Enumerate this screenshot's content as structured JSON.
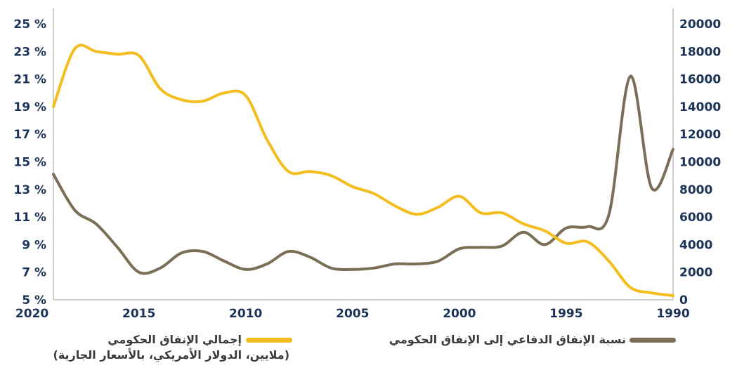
{
  "chart_data": {
    "type": "line",
    "x_ticks": [
      "2020",
      "2015",
      "2010",
      "2005",
      "2000",
      "1995",
      "1990"
    ],
    "x_reversed": true,
    "xlim": [
      2019,
      1990
    ],
    "left_axis": {
      "ticks": [
        "25 %",
        "23 %",
        "21 %",
        "19 %",
        "17 %",
        "15 %",
        "13 %",
        "11 %",
        "9 %",
        "7 %",
        "5 %"
      ],
      "ylim": [
        5,
        25
      ],
      "unit": "%"
    },
    "right_axis": {
      "ticks": [
        "20000",
        "18000",
        "16000",
        "14000",
        "12000",
        "10000",
        "8000",
        "6000",
        "4000",
        "2000",
        "0"
      ],
      "ylim": [
        0,
        20000
      ]
    },
    "series": [
      {
        "name": "نسبة الإنفاق الدفاعي إلى الإنفاق الحكومي",
        "axis": "left",
        "color": "#7a6e57",
        "x": [
          1990,
          1991,
          1992,
          1993,
          1994,
          1995,
          1996,
          1997,
          1998,
          1999,
          2000,
          2001,
          2002,
          2003,
          2004,
          2005,
          2006,
          2007,
          2008,
          2009,
          2010,
          2011,
          2012,
          2013,
          2014,
          2015,
          2016,
          2017,
          2018,
          2019
        ],
        "y": [
          15.9,
          13.1,
          21.2,
          11.2,
          10.3,
          10.2,
          9.0,
          9.9,
          8.9,
          8.8,
          8.7,
          7.8,
          7.6,
          7.6,
          7.3,
          7.2,
          7.3,
          8.1,
          8.5,
          7.6,
          7.2,
          7.8,
          8.5,
          8.4,
          7.3,
          7.0,
          8.8,
          10.5,
          11.5,
          14.1
        ]
      },
      {
        "name": "إجمالي الإنفاق الحكومي",
        "note": "(ملايين، الدولار الأمريكي، بالأسعار الجارية)",
        "axis": "right",
        "color": "#f4bd1e",
        "x": [
          1990,
          1991,
          1992,
          1993,
          1994,
          1995,
          1996,
          1997,
          1998,
          1999,
          2000,
          2001,
          2002,
          2003,
          2004,
          2005,
          2006,
          2007,
          2008,
          2009,
          2010,
          2011,
          2012,
          2013,
          2014,
          2015,
          2016,
          2017,
          2018,
          2019
        ],
        "y": [
          300,
          500,
          900,
          2800,
          4200,
          4100,
          5000,
          5500,
          6300,
          6300,
          7500,
          6700,
          6200,
          6800,
          7700,
          8200,
          9000,
          9300,
          9300,
          11600,
          14800,
          15000,
          14400,
          14500,
          15300,
          17700,
          17800,
          18000,
          18200,
          14000
        ]
      }
    ]
  },
  "legend": {
    "defense_label": "نسبة الإنفاق الدفاعي إلى الإنفاق الحكومي",
    "total_label": "إجمالي الإنفاق الحكومي",
    "total_note": "(ملايين، الدولار الأمريكي، بالأسعار الجارية)"
  }
}
